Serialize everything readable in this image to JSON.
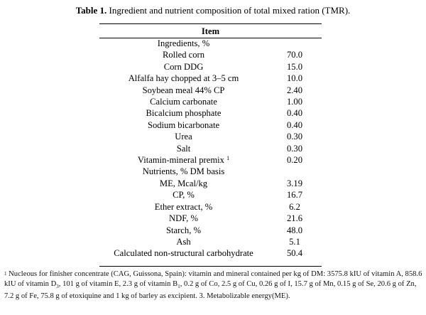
{
  "caption": {
    "label": "Table 1.",
    "text": "Ingredient and nutrient composition of total mixed ration (TMR)."
  },
  "table": {
    "header": "Item",
    "rows": [
      {
        "label": "Ingredients, %",
        "value": ""
      },
      {
        "label": "Rolled corn",
        "value": "70.0"
      },
      {
        "label": "Corn DDG",
        "value": "15.0"
      },
      {
        "label": "Alfalfa hay chopped at 3–5 cm",
        "value": "10.0"
      },
      {
        "label": "Soybean meal 44% CP",
        "value": "2.40"
      },
      {
        "label": "Calcium carbonate",
        "value": "1.00"
      },
      {
        "label": "Bicalcium phosphate",
        "value": "0.40"
      },
      {
        "label": "Sodium bicarbonate",
        "value": "0.40"
      },
      {
        "label": "Urea",
        "value": "0.30"
      },
      {
        "label": "Salt",
        "value": "0.30"
      },
      {
        "label": "Vitamin-mineral premix",
        "note": "1",
        "value": "0.20"
      },
      {
        "label": "Nutrients, % DM basis",
        "value": ""
      },
      {
        "label": "ME, Mcal/kg",
        "value": "3.19"
      },
      {
        "label": "CP, %",
        "value": "16.7"
      },
      {
        "label": "Ether extract, %",
        "value": "6.2"
      },
      {
        "label": "NDF, %",
        "value": "21.6"
      },
      {
        "label": "Starch, %",
        "value": "48.0"
      },
      {
        "label": "Ash",
        "value": "5.1"
      },
      {
        "label": "Calculated non-structural carbohydrate",
        "value": "50.4"
      }
    ]
  },
  "footnote": {
    "marker": "1",
    "p1": " Nucleous for finisher concentrate (CAG, Guissona, Spain): vitamin and mineral contained per kg of DM: 3575.8 kIU of vitamin A, 858.6 kIU of vitamin D",
    "s1": "3",
    "p2": ", 101 g of vitamin E, 2.3 g of vitamin B",
    "s2": "1",
    "p3": ", 0.2 g of Co, 2.5 g of Cu, 0.26 g of I, 15.7 g of Mn, 0.15 g of Se, 20.6 g of Zn, 7.2 g of Fe, 75.8 g of etoxiquine and 1 kg of barley as excipient. 3. Metabolizable energy(ME)."
  }
}
